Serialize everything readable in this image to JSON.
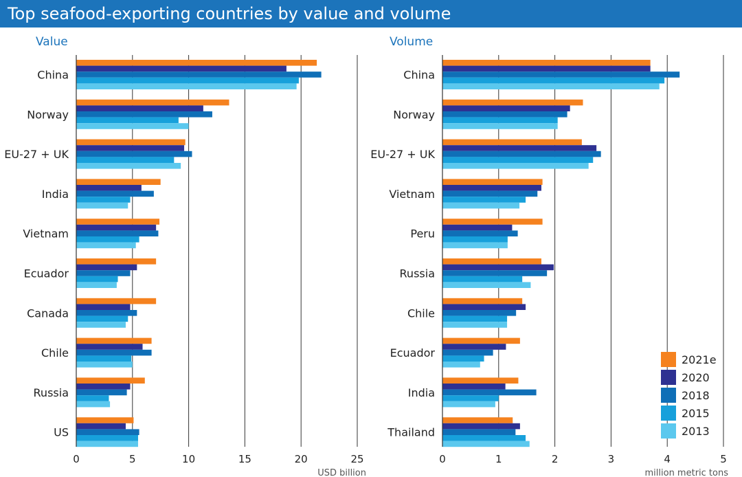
{
  "title": "Top seafood-exporting countries by value and volume",
  "colors": {
    "title_bar": "#1c74bb",
    "panel_title": "#1c74bb",
    "2021e": "#f5821f",
    "2020": "#2e3192",
    "2018": "#0f6fb7",
    "2015": "#17a0db",
    "2013": "#5bc8ee"
  },
  "chart_data": [
    {
      "type": "bar",
      "orientation": "horizontal",
      "title": "Value",
      "xlabel": "USD billion",
      "xlim": [
        0,
        25
      ],
      "ticks": [
        0,
        5,
        10,
        15,
        20,
        25
      ],
      "grid": true,
      "legend": "none",
      "categories": [
        "China",
        "Norway",
        "EU-27 + UK",
        "India",
        "Vietnam",
        "Ecuador",
        "Canada",
        "Chile",
        "Russia",
        "US"
      ],
      "series": [
        {
          "name": "2021e",
          "values": [
            21.4,
            13.6,
            9.7,
            7.5,
            7.4,
            7.1,
            7.1,
            6.7,
            6.1,
            5.1
          ]
        },
        {
          "name": "2020",
          "values": [
            18.7,
            11.3,
            9.6,
            5.8,
            7.1,
            5.4,
            4.8,
            5.9,
            4.8,
            4.4
          ]
        },
        {
          "name": "2018",
          "values": [
            21.8,
            12.1,
            10.3,
            6.9,
            7.3,
            4.8,
            5.4,
            6.7,
            4.5,
            5.6
          ]
        },
        {
          "name": "2015",
          "values": [
            19.8,
            9.1,
            8.7,
            4.8,
            5.6,
            3.7,
            4.6,
            4.9,
            2.9,
            5.5
          ]
        },
        {
          "name": "2013",
          "values": [
            19.6,
            10.0,
            9.3,
            4.6,
            5.3,
            3.6,
            4.4,
            5.0,
            3.0,
            5.5
          ]
        }
      ]
    },
    {
      "type": "bar",
      "orientation": "horizontal",
      "title": "Volume",
      "xlabel": "million metric tons",
      "xlim": [
        0,
        5
      ],
      "ticks": [
        0,
        1,
        2,
        3,
        4,
        5
      ],
      "grid": true,
      "legend": "bottom-right",
      "categories": [
        "China",
        "Norway",
        "EU-27 + UK",
        "Vietnam",
        "Peru",
        "Russia",
        "Chile",
        "Ecuador",
        "India",
        "Thailand"
      ],
      "series": [
        {
          "name": "2021e",
          "values": [
            3.7,
            2.5,
            2.48,
            1.78,
            1.78,
            1.76,
            1.42,
            1.38,
            1.35,
            1.25
          ]
        },
        {
          "name": "2020",
          "values": [
            3.7,
            2.27,
            2.74,
            1.76,
            1.24,
            1.98,
            1.48,
            1.13,
            1.12,
            1.38
          ]
        },
        {
          "name": "2018",
          "values": [
            4.22,
            2.22,
            2.82,
            1.69,
            1.34,
            1.86,
            1.31,
            0.9,
            1.67,
            1.3
          ]
        },
        {
          "name": "2015",
          "values": [
            3.95,
            2.05,
            2.68,
            1.48,
            1.16,
            1.42,
            1.15,
            0.74,
            1.0,
            1.48
          ]
        },
        {
          "name": "2013",
          "values": [
            3.86,
            2.05,
            2.6,
            1.37,
            1.16,
            1.57,
            1.15,
            0.67,
            0.94,
            1.55
          ]
        }
      ]
    }
  ]
}
